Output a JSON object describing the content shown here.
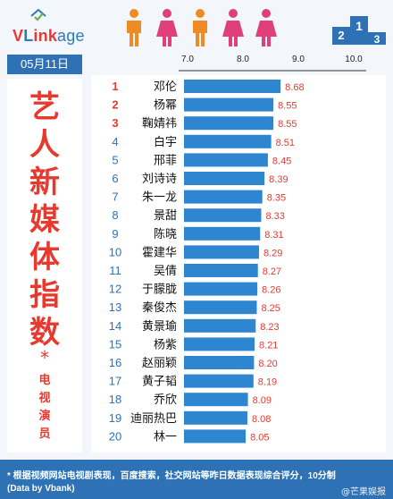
{
  "header": {
    "logo": "VLinkage",
    "date": "05月11日"
  },
  "title": {
    "chars": [
      "艺",
      "人",
      "新",
      "媒",
      "体",
      "指",
      "数"
    ],
    "star": "*",
    "sub": [
      "电",
      "视",
      "演",
      "员"
    ]
  },
  "colors": {
    "brand_blue": "#2e72b5",
    "rank_red": "#e8392f",
    "rank_blue": "#2e72b5",
    "bar": "#2e86d0",
    "value": "#e8392f"
  },
  "chart_data": {
    "type": "bar",
    "orientation": "horizontal",
    "xlim": [
      6.95,
      10.0
    ],
    "ticks": [
      "7.0",
      "8.0",
      "9.0",
      "10.0"
    ],
    "rows": [
      {
        "rank": "1",
        "name": "邓伦",
        "value": "8.68"
      },
      {
        "rank": "2",
        "name": "杨幂",
        "value": "8.55"
      },
      {
        "rank": "3",
        "name": "鞠婧祎",
        "value": "8.55"
      },
      {
        "rank": "4",
        "name": "白宇",
        "value": "8.51"
      },
      {
        "rank": "5",
        "name": "邢菲",
        "value": "8.45"
      },
      {
        "rank": "6",
        "name": "刘诗诗",
        "value": "8.39"
      },
      {
        "rank": "7",
        "name": "朱一龙",
        "value": "8.35"
      },
      {
        "rank": "8",
        "name": "景甜",
        "value": "8.33"
      },
      {
        "rank": "9",
        "name": "陈晓",
        "value": "8.31"
      },
      {
        "rank": "10",
        "name": "霍建华",
        "value": "8.29"
      },
      {
        "rank": "11",
        "name": "吴倩",
        "value": "8.27"
      },
      {
        "rank": "12",
        "name": "于朦胧",
        "value": "8.26"
      },
      {
        "rank": "13",
        "name": "秦俊杰",
        "value": "8.25"
      },
      {
        "rank": "14",
        "name": "黄景瑜",
        "value": "8.23"
      },
      {
        "rank": "15",
        "name": "杨紫",
        "value": "8.21"
      },
      {
        "rank": "16",
        "name": "赵丽颖",
        "value": "8.20"
      },
      {
        "rank": "17",
        "name": "黄子韬",
        "value": "8.19"
      },
      {
        "rank": "18",
        "name": "乔欣",
        "value": "8.09"
      },
      {
        "rank": "19",
        "name": "迪丽热巴",
        "value": "8.08"
      },
      {
        "rank": "20",
        "name": "林一",
        "value": "8.05"
      }
    ]
  },
  "footer": {
    "line1": "* 根据视频网站电视剧表现，百度搜索，社交网站等昨日数据表现综合评分，10分制",
    "line2": "(Data by Vbank)",
    "watermark": "@芒果娱报"
  }
}
